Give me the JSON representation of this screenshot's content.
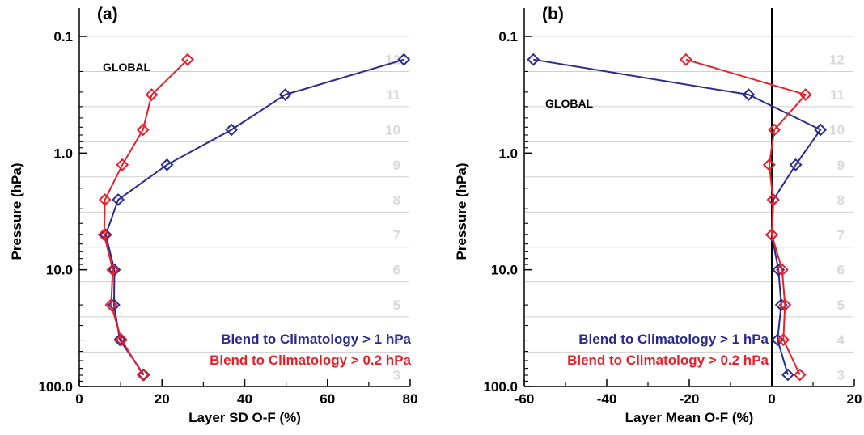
{
  "chart_data": [
    {
      "type": "line",
      "panel_label": "(a)",
      "region_label": "GLOBAL",
      "xlabel": "Layer SD O-F (%)",
      "ylabel": "Pressure (hPa)",
      "xlim": [
        0,
        80
      ],
      "ylim": [
        100,
        0.1
      ],
      "yscale": "log",
      "xticks": [
        0,
        20,
        40,
        60,
        80
      ],
      "xtick_labels": [
        "0",
        "20",
        "40",
        "60",
        "80"
      ],
      "yticks": [
        0.1,
        1.0,
        10.0,
        100.0
      ],
      "ytick_labels": [
        "0.1",
        "1.0",
        "10.0",
        "100.0"
      ],
      "layer_boundaries": [
        0.1,
        0.2,
        0.4,
        0.8,
        1.6,
        3.2,
        6.4,
        12.7,
        25.3,
        50.7,
        101.3
      ],
      "layer_labels": [
        {
          "label": "12",
          "p": 0.158
        },
        {
          "label": "11",
          "p": 0.316
        },
        {
          "label": "10",
          "p": 0.631
        },
        {
          "label": "9",
          "p": 1.26
        },
        {
          "label": "8",
          "p": 2.51
        },
        {
          "label": "7",
          "p": 5.01
        },
        {
          "label": "6",
          "p": 10.0
        },
        {
          "label": "5",
          "p": 20.0
        },
        {
          "label": "4",
          "p": 39.8
        },
        {
          "label": "3",
          "p": 79.4
        }
      ],
      "series": [
        {
          "name": "Blend to Climatology > 1 hPa",
          "color": "#2b2b8f",
          "x": [
            78.5,
            49.8,
            36.8,
            21.2,
            9.4,
            6.4,
            8.5,
            8.4,
            9.8,
            15.6
          ],
          "y": [
            0.158,
            0.316,
            0.631,
            1.26,
            2.51,
            5.01,
            10.0,
            20.0,
            39.8,
            79.4
          ]
        },
        {
          "name": "Blend to Climatology > 0.2 hPa",
          "color": "#e8202a",
          "x": [
            26.2,
            17.5,
            15.4,
            10.4,
            6.2,
            6.0,
            8.1,
            7.7,
            10.2,
            15.4
          ],
          "y": [
            0.158,
            0.316,
            0.631,
            1.26,
            2.51,
            5.01,
            10.0,
            20.0,
            39.8,
            79.4
          ]
        }
      ],
      "legend_position": "bottom-right",
      "grid": false
    },
    {
      "type": "line",
      "panel_label": "(b)",
      "region_label": "GLOBAL",
      "xlabel": "Layer Mean O-F (%)",
      "ylabel": "Pressure (hPa)",
      "xlim": [
        -60,
        20
      ],
      "ylim": [
        100,
        0.1
      ],
      "yscale": "log",
      "xticks": [
        -60,
        -40,
        -20,
        0,
        20
      ],
      "xtick_labels": [
        "-60",
        "-40",
        "-20",
        "0",
        "20"
      ],
      "yticks": [
        0.1,
        1.0,
        10.0,
        100.0
      ],
      "ytick_labels": [
        "0.1",
        "1.0",
        "10.0",
        "100.0"
      ],
      "zero_line": true,
      "layer_boundaries": [
        0.1,
        0.2,
        0.4,
        0.8,
        1.6,
        3.2,
        6.4,
        12.7,
        25.3,
        50.7,
        101.3
      ],
      "layer_labels": [
        {
          "label": "12",
          "p": 0.158
        },
        {
          "label": "11",
          "p": 0.316
        },
        {
          "label": "10",
          "p": 0.631
        },
        {
          "label": "9",
          "p": 1.26
        },
        {
          "label": "8",
          "p": 2.51
        },
        {
          "label": "7",
          "p": 5.01
        },
        {
          "label": "6",
          "p": 10.0
        },
        {
          "label": "5",
          "p": 20.0
        },
        {
          "label": "4",
          "p": 39.8
        },
        {
          "label": "3",
          "p": 79.4
        }
      ],
      "series": [
        {
          "name": "Blend to Climatology > 1 hPa",
          "color": "#2b2b8f",
          "x": [
            -57.8,
            -5.6,
            11.8,
            5.8,
            0.4,
            0.0,
            1.6,
            2.3,
            1.4,
            3.9
          ],
          "y": [
            0.158,
            0.316,
            0.631,
            1.26,
            2.51,
            5.01,
            10.0,
            20.0,
            39.8,
            79.4
          ]
        },
        {
          "name": "Blend to Climatology > 0.2 hPa",
          "color": "#e8202a",
          "x": [
            -20.8,
            8.2,
            0.6,
            -0.6,
            0.3,
            0.0,
            2.5,
            3.2,
            2.8,
            6.8
          ],
          "y": [
            0.158,
            0.316,
            0.631,
            1.26,
            2.51,
            5.01,
            10.0,
            20.0,
            39.8,
            79.4
          ]
        }
      ],
      "legend_position": "bottom-right",
      "grid": false
    }
  ]
}
